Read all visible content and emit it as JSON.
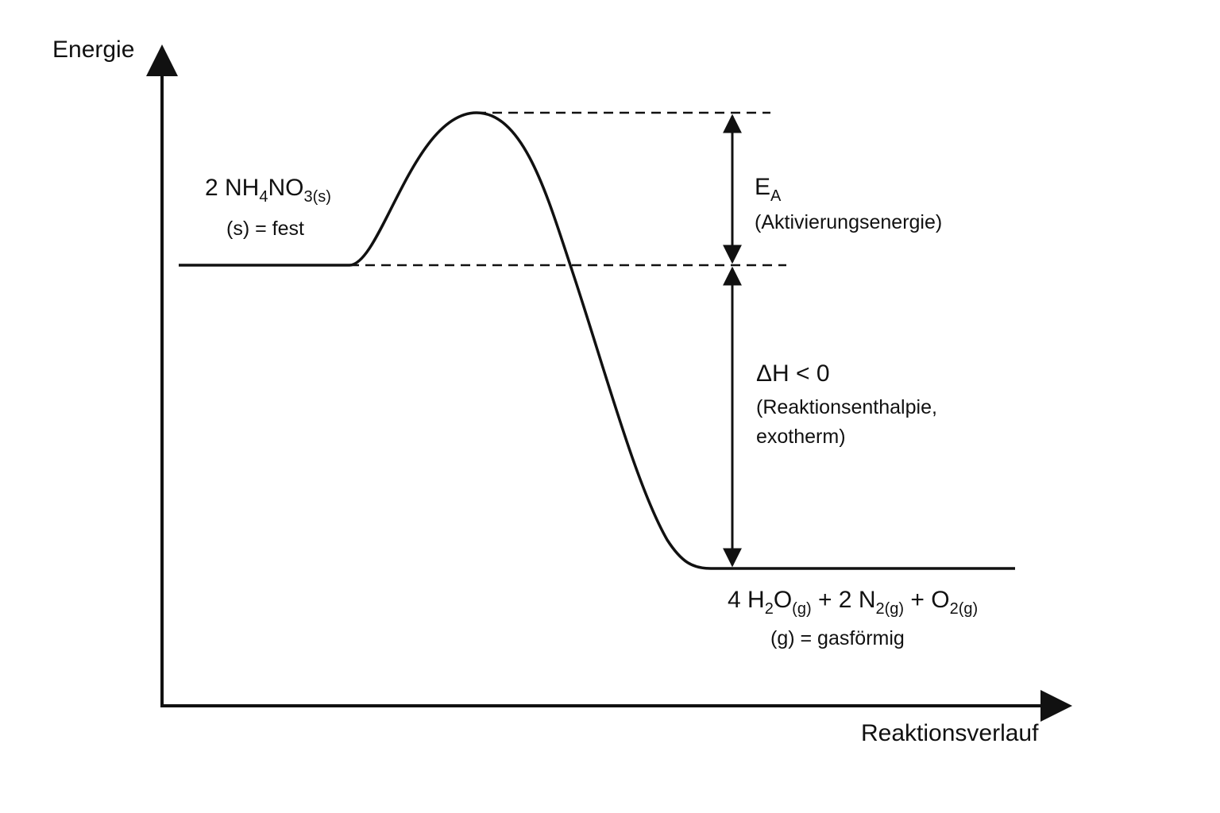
{
  "axes": {
    "y_label": "Energie",
    "x_label": "Reaktionsverlauf"
  },
  "reactant": {
    "formula": [
      "2 NH",
      "4",
      "NO",
      "3(s)"
    ],
    "note": "(s) = fest"
  },
  "product": {
    "formula": [
      "4 H",
      "2",
      "O",
      "(g)",
      " + 2 N",
      "2(g)",
      " + O",
      "2(g)"
    ],
    "note": "(g) = gasförmig"
  },
  "activation_energy": {
    "symbol": [
      "E",
      "A"
    ],
    "label": "(Aktivierungsenergie)"
  },
  "enthalpy": {
    "symbol": "ΔH < 0",
    "label_lines": [
      "(Reaktionsenthalpie,",
      "exotherm)"
    ]
  }
}
